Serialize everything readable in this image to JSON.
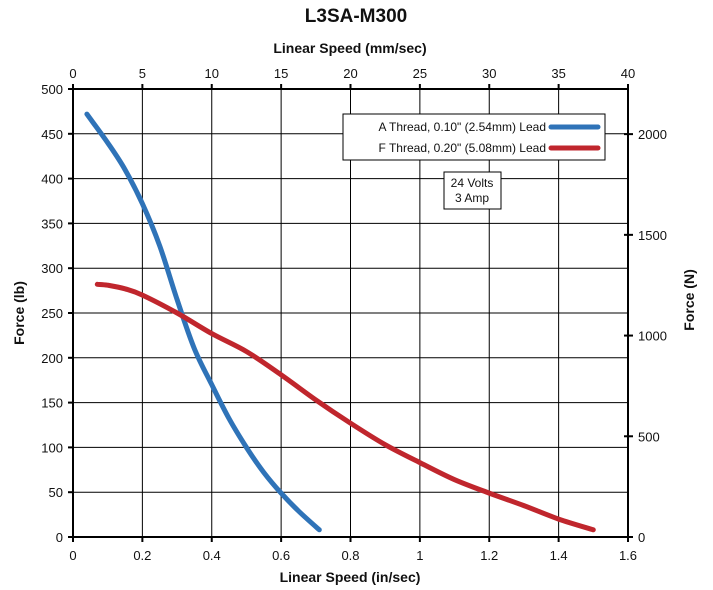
{
  "chart_data": {
    "type": "line",
    "title": "L3SA-M300",
    "xlabel": "Linear Speed (in/sec)",
    "x2label": "Linear Speed (mm/sec)",
    "ylabel": "Force (lb)",
    "y2label": "Force (N)",
    "xlim": [
      0,
      1.6
    ],
    "ylim": [
      0,
      500
    ],
    "x2lim": [
      0,
      40
    ],
    "y2lim": [
      0,
      2224
    ],
    "xticks": [
      "0",
      "0.2",
      "0.4",
      "0.6",
      "0.8",
      "1",
      "1.2",
      "1.4",
      "1.6"
    ],
    "yticks": [
      "0",
      "50",
      "100",
      "150",
      "200",
      "250",
      "300",
      "350",
      "400",
      "450",
      "500"
    ],
    "x2ticks": [
      "0",
      "5",
      "10",
      "15",
      "20",
      "25",
      "30",
      "35",
      "40"
    ],
    "y2ticks": [
      "0",
      "500",
      "1000",
      "1500",
      "2000"
    ],
    "grid": true,
    "legend_position": "top-right",
    "annotation": [
      "24 Volts",
      "3 Amp"
    ],
    "series": [
      {
        "name": "A Thread, 0.10\" (2.54mm) Lead",
        "color": "#2f73b8",
        "x": [
          0.04,
          0.1,
          0.15,
          0.2,
          0.25,
          0.3,
          0.35,
          0.4,
          0.45,
          0.5,
          0.55,
          0.6,
          0.65,
          0.71
        ],
        "y": [
          472,
          440,
          410,
          372,
          325,
          265,
          210,
          170,
          132,
          100,
          72,
          49,
          29,
          8
        ]
      },
      {
        "name": "F Thread, 0.20\" (5.08mm) Lead",
        "color": "#c0262d",
        "x": [
          0.07,
          0.1,
          0.15,
          0.2,
          0.3,
          0.4,
          0.5,
          0.6,
          0.7,
          0.8,
          0.9,
          1.0,
          1.1,
          1.2,
          1.3,
          1.4,
          1.5
        ],
        "y": [
          282,
          281,
          277,
          270,
          250,
          227,
          207,
          181,
          153,
          127,
          103,
          83,
          64,
          49,
          35,
          20,
          8
        ]
      }
    ]
  }
}
